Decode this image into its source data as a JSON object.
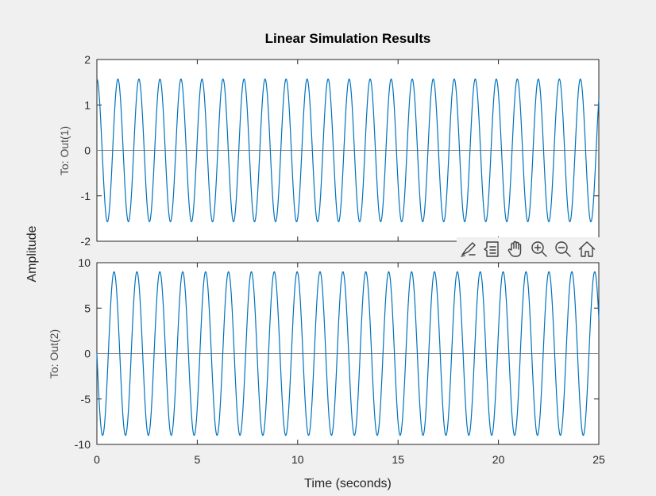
{
  "chart_data": {
    "type": "line",
    "title": "Linear Simulation Results",
    "xlabel": "Time (seconds)",
    "ylabel": "Amplitude",
    "xlim": [
      0,
      25
    ],
    "xticks": [
      "0",
      "5",
      "10",
      "15",
      "20",
      "25"
    ],
    "grid": false,
    "series_color": "#0072bd",
    "zero_line_color": "#8c8c8c",
    "subplots": [
      {
        "name": "To: Out(1)",
        "ylim": [
          -2,
          2
        ],
        "yticks": [
          "-2",
          "-1",
          "0",
          "1",
          "2"
        ],
        "waveform": {
          "amplitude": 1.57,
          "period": 1.047,
          "value_at_0": 1.57,
          "value_at_25": 1.2
        }
      },
      {
        "name": "To: Out(2)",
        "ylim": [
          -10,
          10
        ],
        "yticks": [
          "-10",
          "-5",
          "0",
          "5",
          "10"
        ],
        "waveform": {
          "amplitude": 9.0,
          "period": 1.14,
          "value_at_0": 0,
          "value_at_25": 6.0
        }
      }
    ]
  },
  "toolbar": {
    "buttons": [
      {
        "icon": "brush-icon"
      },
      {
        "icon": "data-tips-icon"
      },
      {
        "icon": "pan-hand-icon"
      },
      {
        "icon": "zoom-in-icon"
      },
      {
        "icon": "zoom-out-icon"
      },
      {
        "icon": "home-icon"
      }
    ]
  }
}
